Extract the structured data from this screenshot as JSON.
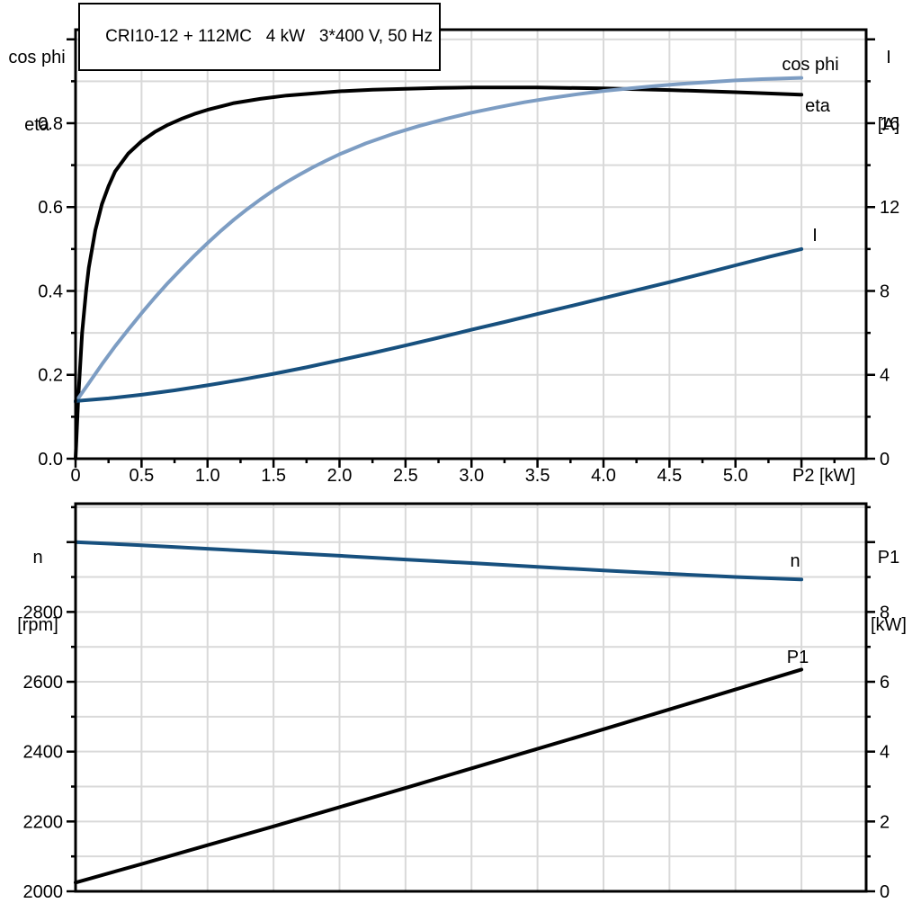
{
  "title": "CRI10-12 + 112MC   4 kW   3*400 V, 50 Hz",
  "colors": {
    "black": "#000000",
    "light_blue": "#7d9dc3",
    "dark_blue": "#17507e",
    "grid": "#d9d9d9",
    "frame": "#000000"
  },
  "chart_data": [
    {
      "type": "line",
      "name": "motor-performance-curves",
      "geom": "top",
      "x_axis": {
        "title": "P2 [kW]",
        "min": 0,
        "max": 5.99,
        "grid_step": 0.5,
        "major_step": 0.5,
        "minor_step": 0.25,
        "tick_values": [
          0,
          0.5,
          1,
          1.5,
          2,
          2.5,
          3,
          3.5,
          4,
          4.5,
          5
        ],
        "tick_labels": [
          "0",
          "0.5",
          "1.0",
          "1.5",
          "2.0",
          "2.5",
          "3.0",
          "3.5",
          "4.0",
          "4.5",
          "5.0"
        ]
      },
      "y_left": {
        "title_lines": [
          "cos phi",
          "eta"
        ],
        "min": 0,
        "max": 1.023,
        "grid_step": 0.1,
        "major_step": 0.2,
        "minor_step": 0.1,
        "tick_values": [
          0,
          0.2,
          0.4,
          0.6,
          0.8
        ],
        "tick_labels": [
          "0.0",
          "0.2",
          "0.4",
          "0.6",
          "0.8"
        ]
      },
      "y_right": {
        "title_lines": [
          "I",
          "[A]"
        ],
        "min": 0,
        "max": 20.46,
        "major_step": 4,
        "minor_step": 2,
        "tick_values": [
          0,
          4,
          8,
          12,
          16
        ],
        "tick_labels": [
          "0",
          "4",
          "8",
          "12",
          "16"
        ]
      },
      "series": [
        {
          "name": "eta",
          "curve_label": "eta",
          "axis": "left",
          "color_key": "black",
          "points": [
            [
              0,
              0
            ],
            [
              0.02,
              0.14
            ],
            [
              0.05,
              0.3
            ],
            [
              0.08,
              0.4
            ],
            [
              0.1,
              0.455
            ],
            [
              0.15,
              0.545
            ],
            [
              0.2,
              0.607
            ],
            [
              0.25,
              0.65
            ],
            [
              0.3,
              0.685
            ],
            [
              0.4,
              0.728
            ],
            [
              0.5,
              0.757
            ],
            [
              0.6,
              0.779
            ],
            [
              0.7,
              0.796
            ],
            [
              0.8,
              0.81
            ],
            [
              0.9,
              0.822
            ],
            [
              1,
              0.832
            ],
            [
              1.2,
              0.848
            ],
            [
              1.4,
              0.858
            ],
            [
              1.6,
              0.866
            ],
            [
              1.8,
              0.871
            ],
            [
              2,
              0.876
            ],
            [
              2.25,
              0.88
            ],
            [
              2.5,
              0.882
            ],
            [
              2.75,
              0.884
            ],
            [
              3,
              0.885
            ],
            [
              3.5,
              0.885
            ],
            [
              4,
              0.883
            ],
            [
              4.5,
              0.879
            ],
            [
              5,
              0.874
            ],
            [
              5.25,
              0.871
            ],
            [
              5.5,
              0.868
            ]
          ]
        },
        {
          "name": "cos-phi",
          "curve_label": "cos phi",
          "axis": "left",
          "color_key": "light_blue",
          "points": [
            [
              0,
              0.135
            ],
            [
              0.1,
              0.18
            ],
            [
              0.2,
              0.225
            ],
            [
              0.3,
              0.268
            ],
            [
              0.4,
              0.308
            ],
            [
              0.5,
              0.347
            ],
            [
              0.6,
              0.384
            ],
            [
              0.7,
              0.419
            ],
            [
              0.8,
              0.452
            ],
            [
              0.9,
              0.484
            ],
            [
              1,
              0.514
            ],
            [
              1.1,
              0.543
            ],
            [
              1.2,
              0.57
            ],
            [
              1.3,
              0.595
            ],
            [
              1.4,
              0.618
            ],
            [
              1.5,
              0.64
            ],
            [
              1.6,
              0.66
            ],
            [
              1.7,
              0.678
            ],
            [
              1.8,
              0.695
            ],
            [
              1.9,
              0.711
            ],
            [
              2,
              0.726
            ],
            [
              2.2,
              0.752
            ],
            [
              2.4,
              0.774
            ],
            [
              2.6,
              0.793
            ],
            [
              2.8,
              0.81
            ],
            [
              3,
              0.825
            ],
            [
              3.2,
              0.838
            ],
            [
              3.4,
              0.85
            ],
            [
              3.6,
              0.86
            ],
            [
              3.8,
              0.869
            ],
            [
              4,
              0.877
            ],
            [
              4.2,
              0.883
            ],
            [
              4.4,
              0.889
            ],
            [
              4.6,
              0.894
            ],
            [
              4.8,
              0.898
            ],
            [
              5,
              0.902
            ],
            [
              5.2,
              0.905
            ],
            [
              5.5,
              0.908
            ]
          ]
        },
        {
          "name": "current",
          "curve_label": "I",
          "axis": "right",
          "color_key": "dark_blue",
          "points": [
            [
              0,
              2.75
            ],
            [
              0.25,
              2.88
            ],
            [
              0.5,
              3.05
            ],
            [
              0.75,
              3.26
            ],
            [
              1,
              3.5
            ],
            [
              1.25,
              3.76
            ],
            [
              1.5,
              4.05
            ],
            [
              1.75,
              4.36
            ],
            [
              2,
              4.7
            ],
            [
              2.25,
              5.04
            ],
            [
              2.5,
              5.4
            ],
            [
              2.75,
              5.77
            ],
            [
              3,
              6.15
            ],
            [
              3.25,
              6.52
            ],
            [
              3.5,
              6.9
            ],
            [
              3.75,
              7.28
            ],
            [
              4,
              7.66
            ],
            [
              4.25,
              8.04
            ],
            [
              4.5,
              8.42
            ],
            [
              4.75,
              8.82
            ],
            [
              5,
              9.22
            ],
            [
              5.25,
              9.62
            ],
            [
              5.5,
              10
            ]
          ]
        }
      ]
    },
    {
      "type": "line",
      "name": "speed-and-input-power-curves",
      "geom": "bottom",
      "x_axis": {
        "title": "",
        "min": 0,
        "max": 5.99,
        "grid_step": 0.5,
        "major_step": 0.5,
        "minor_step": 0.25,
        "tick_values": [],
        "tick_labels": []
      },
      "y_left": {
        "title_lines": [
          "n",
          "[rpm]"
        ],
        "min": 2000,
        "max": 3110,
        "grid_step": 100,
        "major_step": 200,
        "minor_step": 100,
        "tick_values": [
          2000,
          2200,
          2400,
          2600,
          2800
        ],
        "tick_labels": [
          "2000",
          "2200",
          "2400",
          "2600",
          "2800"
        ]
      },
      "y_right": {
        "title_lines": [
          "P1",
          "[kW]"
        ],
        "min": 0,
        "max": 11.1,
        "major_step": 2,
        "minor_step": 1,
        "tick_values": [
          0,
          2,
          4,
          6,
          8
        ],
        "tick_labels": [
          "0",
          "2",
          "4",
          "6",
          "8"
        ]
      },
      "series": [
        {
          "name": "speed",
          "curve_label": "n",
          "axis": "left",
          "color_key": "dark_blue",
          "points": [
            [
              0,
              3000
            ],
            [
              0.5,
              2991
            ],
            [
              1,
              2981
            ],
            [
              1.5,
              2971
            ],
            [
              2,
              2961
            ],
            [
              2.5,
              2950
            ],
            [
              3,
              2940
            ],
            [
              3.5,
              2929
            ],
            [
              4,
              2919
            ],
            [
              4.5,
              2909
            ],
            [
              5,
              2900
            ],
            [
              5.5,
              2893
            ]
          ]
        },
        {
          "name": "input-power",
          "curve_label": "P1",
          "axis": "right",
          "color_key": "black",
          "points": [
            [
              0,
              0.25
            ],
            [
              0.5,
              0.78
            ],
            [
              1,
              1.32
            ],
            [
              1.5,
              1.86
            ],
            [
              2,
              2.41
            ],
            [
              2.5,
              2.96
            ],
            [
              3,
              3.52
            ],
            [
              3.5,
              4.08
            ],
            [
              4,
              4.64
            ],
            [
              4.5,
              5.21
            ],
            [
              5,
              5.78
            ],
            [
              5.5,
              6.35
            ]
          ]
        }
      ]
    }
  ]
}
